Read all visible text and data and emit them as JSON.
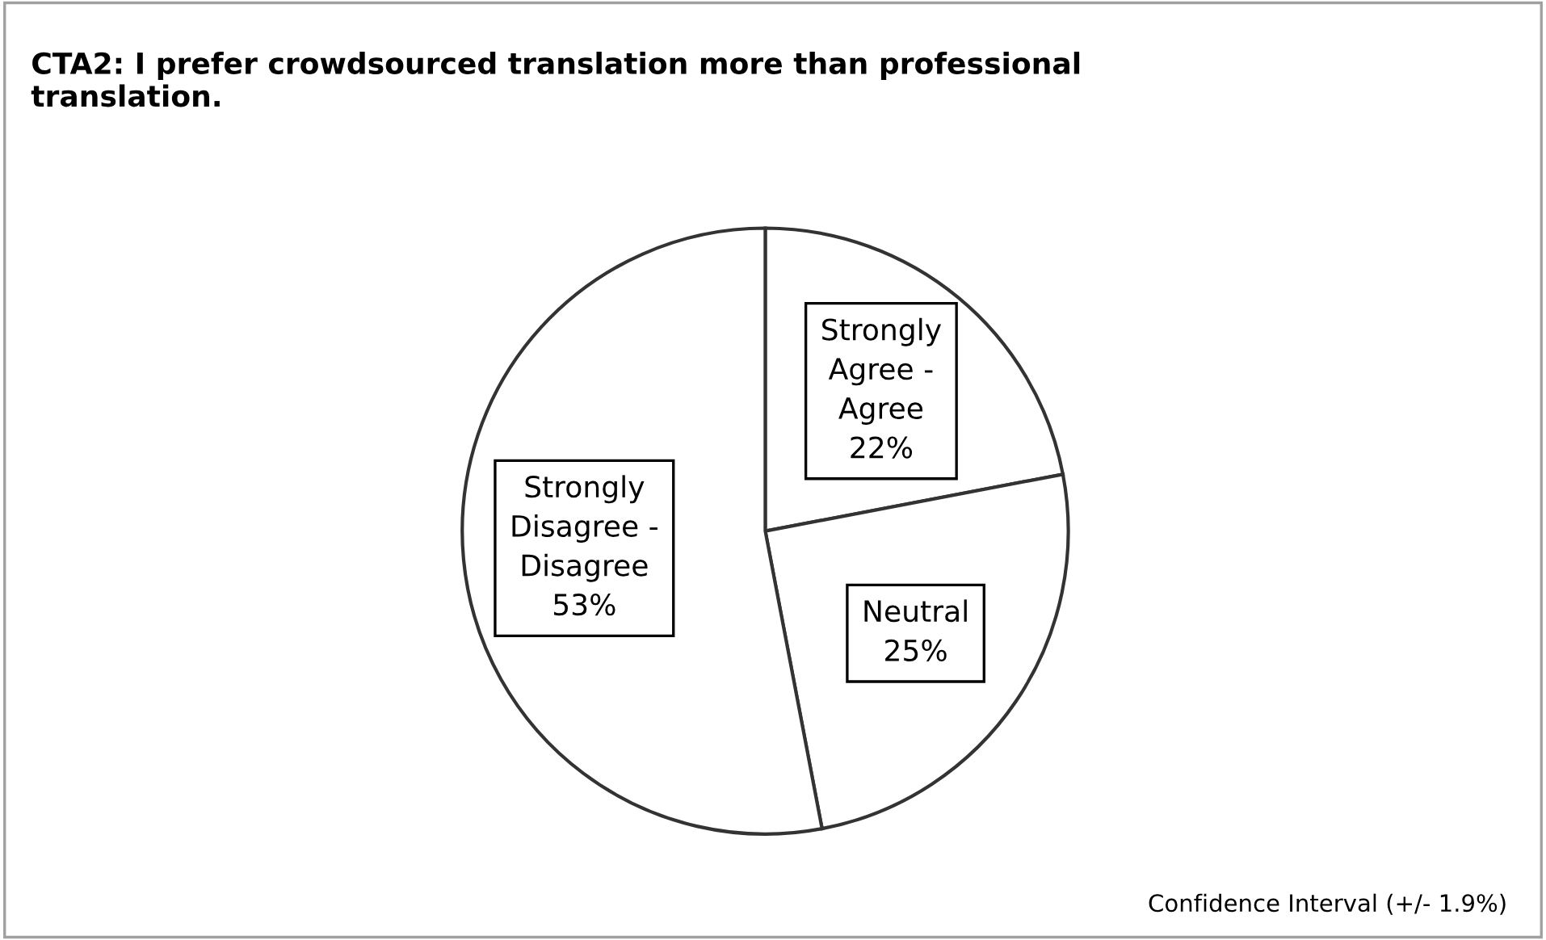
{
  "chart_data": {
    "type": "pie",
    "title": "CTA2: I prefer crowdsourced translation more than professional\ntranslation.",
    "categories": [
      "Strongly\nAgree -\nAgree",
      "Neutral",
      "Strongly\nDisagree -\nDisagree"
    ],
    "values": [
      22,
      25,
      53
    ],
    "value_labels": [
      "22%",
      "25%",
      "53%"
    ],
    "colors": [
      "#ffffff",
      "#ffffff",
      "#ffffff"
    ],
    "annotations": [
      "Confidence Interval (+/- 1.9%)"
    ],
    "legend": false
  }
}
